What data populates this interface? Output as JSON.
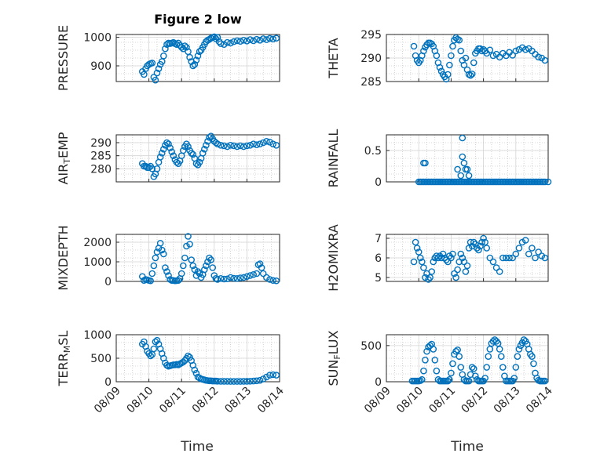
{
  "title": "Figure 2 low",
  "x_axis": {
    "label": "Time",
    "ticks": [
      {
        "day": 9,
        "label": "08/09"
      },
      {
        "day": 10,
        "label": "08/10"
      },
      {
        "day": 11,
        "label": "08/11"
      },
      {
        "day": 12,
        "label": "08/12"
      },
      {
        "day": 13,
        "label": "08/13"
      },
      {
        "day": 14,
        "label": "08/14"
      }
    ]
  },
  "colors": {
    "marker": "#0072BD",
    "axis": "#262626"
  },
  "chart_data": [
    {
      "type": "scatter",
      "ylabel": "PRESSURE",
      "ylim": [
        845,
        1010
      ],
      "yticks": [
        900,
        1000
      ],
      "x": [
        9.8,
        9.85,
        9.9,
        9.95,
        10.0,
        10.05,
        10.1,
        10.15,
        10.2,
        10.25,
        10.3,
        10.35,
        10.4,
        10.45,
        10.5,
        10.55,
        10.6,
        10.65,
        10.7,
        10.75,
        10.8,
        10.85,
        10.9,
        10.95,
        11.0,
        11.05,
        11.1,
        11.15,
        11.2,
        11.25,
        11.3,
        11.35,
        11.4,
        11.45,
        11.5,
        11.55,
        11.6,
        11.65,
        11.7,
        11.75,
        11.8,
        11.85,
        11.9,
        11.95,
        12.0,
        12.05,
        12.1,
        12.15,
        12.2,
        12.3,
        12.4,
        12.5,
        12.6,
        12.7,
        12.8,
        12.9,
        13.0,
        13.1,
        13.2,
        13.3,
        13.4,
        13.5,
        13.6,
        13.7,
        13.8,
        13.9
      ],
      "y": [
        880,
        870,
        890,
        900,
        905,
        908,
        910,
        860,
        850,
        875,
        890,
        905,
        915,
        935,
        960,
        975,
        980,
        978,
        980,
        982,
        978,
        975,
        980,
        972,
        965,
        960,
        970,
        965,
        950,
        930,
        915,
        900,
        905,
        920,
        935,
        950,
        955,
        965,
        975,
        985,
        990,
        993,
        997,
        1000,
        1002,
        995,
        1000,
        985,
        978,
        975,
        982,
        980,
        985,
        988,
        986,
        990,
        987,
        992,
        988,
        993,
        990,
        995,
        992,
        996,
        994,
        997
      ]
    },
    {
      "type": "scatter",
      "ylabel": "THETA",
      "ylim": [
        285,
        295
      ],
      "yticks": [
        285,
        290,
        295
      ],
      "x": [
        9.85,
        9.9,
        9.95,
        10.0,
        10.05,
        10.1,
        10.15,
        10.2,
        10.25,
        10.3,
        10.35,
        10.4,
        10.45,
        10.5,
        10.55,
        10.6,
        10.65,
        10.7,
        10.75,
        10.8,
        10.85,
        10.9,
        10.95,
        11.0,
        11.05,
        11.1,
        11.15,
        11.2,
        11.25,
        11.3,
        11.35,
        11.4,
        11.45,
        11.5,
        11.55,
        11.6,
        11.65,
        11.7,
        11.75,
        11.8,
        11.85,
        11.9,
        11.95,
        12.0,
        12.05,
        12.1,
        12.2,
        12.3,
        12.4,
        12.5,
        12.6,
        12.7,
        12.8,
        12.9,
        13.0,
        13.1,
        13.2,
        13.3,
        13.4,
        13.5,
        13.6,
        13.7,
        13.8,
        13.9
      ],
      "y": [
        292.5,
        290.5,
        289.5,
        289.0,
        289.5,
        290.5,
        291.5,
        292.3,
        292.8,
        293.2,
        293.2,
        293.0,
        292.5,
        291.5,
        290.5,
        289.0,
        288.0,
        287.2,
        286.5,
        286.0,
        285.5,
        286.5,
        288.5,
        290.5,
        292.5,
        293.8,
        294.3,
        294.0,
        293.8,
        291.5,
        289.5,
        288.5,
        290.0,
        287.5,
        286.5,
        286.3,
        286.6,
        289.0,
        291.0,
        291.5,
        292.0,
        292.0,
        291.5,
        291.8,
        291.5,
        291.0,
        291.7,
        290.5,
        290.8,
        290.2,
        291.0,
        290.5,
        291.2,
        290.6,
        291.5,
        291.8,
        292.2,
        291.8,
        292.0,
        291.5,
        290.8,
        290.2,
        290.0,
        289.5
      ]
    },
    {
      "type": "scatter",
      "ylabel": "AIR_TEMP",
      "ylim": [
        275,
        293
      ],
      "yticks": [
        280,
        285,
        290
      ],
      "x": [
        9.8,
        9.85,
        9.9,
        9.95,
        10.0,
        10.05,
        10.1,
        10.15,
        10.2,
        10.25,
        10.3,
        10.35,
        10.4,
        10.45,
        10.5,
        10.55,
        10.6,
        10.65,
        10.7,
        10.75,
        10.8,
        10.85,
        10.9,
        10.95,
        11.0,
        11.05,
        11.1,
        11.15,
        11.2,
        11.25,
        11.3,
        11.35,
        11.4,
        11.45,
        11.5,
        11.55,
        11.6,
        11.65,
        11.7,
        11.75,
        11.8,
        11.85,
        11.9,
        11.95,
        12.0,
        12.05,
        12.1,
        12.2,
        12.3,
        12.4,
        12.5,
        12.6,
        12.7,
        12.8,
        12.9,
        13.0,
        13.1,
        13.2,
        13.3,
        13.4,
        13.5,
        13.6,
        13.7,
        13.8,
        13.9
      ],
      "y": [
        282,
        281,
        281,
        280.5,
        280.5,
        281,
        280,
        277,
        278,
        280,
        282.5,
        284.5,
        286,
        287.5,
        289,
        290,
        289.5,
        288,
        286.5,
        285,
        283.5,
        282.5,
        282,
        283,
        285,
        287,
        288.5,
        289.5,
        288.5,
        287,
        286,
        285.5,
        284,
        282,
        281.5,
        282.5,
        284,
        286,
        287.5,
        289,
        290.5,
        292,
        292.5,
        291.5,
        290.5,
        290,
        289.5,
        289,
        288.8,
        288.5,
        289,
        288.8,
        288.5,
        288.8,
        288.5,
        288.8,
        289,
        289.5,
        289.2,
        289.5,
        290,
        290.5,
        290.2,
        289.5,
        289
      ]
    },
    {
      "type": "scatter",
      "ylabel": "RAINFALL",
      "ylim": [
        0,
        0.75
      ],
      "yticks": [
        0,
        0.5
      ],
      "x": [
        10.0,
        10.05,
        10.1,
        10.15,
        10.2,
        10.25,
        10.3,
        10.35,
        10.4,
        10.45,
        10.5,
        10.55,
        10.6,
        10.65,
        10.7,
        10.75,
        10.8,
        10.85,
        10.9,
        10.95,
        11.0,
        11.05,
        11.1,
        11.15,
        11.2,
        11.25,
        11.3,
        11.35,
        11.4,
        11.45,
        11.5,
        11.55,
        11.6,
        11.65,
        11.7,
        11.75,
        11.8,
        11.85,
        11.9,
        11.95,
        12.0,
        12.05,
        12.1,
        12.15,
        12.2,
        12.25,
        12.3,
        12.35,
        12.4,
        12.45,
        12.5,
        12.55,
        12.6,
        12.65,
        12.7,
        12.75,
        12.8,
        12.85,
        12.9,
        12.95,
        13.0,
        13.05,
        13.1,
        13.15,
        13.2,
        13.25,
        13.3,
        13.35,
        13.4,
        13.45,
        13.5,
        13.55,
        13.6,
        13.65,
        13.7,
        13.75,
        13.8,
        13.85,
        13.9,
        14.0,
        10.15,
        10.2,
        11.2,
        11.3,
        11.35,
        11.35,
        11.4,
        11.45,
        11.5,
        11.55
      ],
      "y": [
        0,
        0,
        0,
        0,
        0,
        0,
        0,
        0,
        0,
        0,
        0,
        0,
        0,
        0,
        0,
        0,
        0,
        0,
        0,
        0,
        0,
        0,
        0,
        0,
        0,
        0,
        0,
        0,
        0,
        0,
        0,
        0,
        0,
        0,
        0,
        0,
        0,
        0,
        0,
        0,
        0,
        0,
        0,
        0,
        0,
        0,
        0,
        0,
        0,
        0,
        0,
        0,
        0,
        0,
        0,
        0,
        0,
        0,
        0,
        0,
        0,
        0,
        0,
        0,
        0,
        0,
        0,
        0,
        0,
        0,
        0,
        0,
        0,
        0,
        0,
        0,
        0,
        0,
        0,
        0,
        0.3,
        0.3,
        0.2,
        0.1,
        0.7,
        0.4,
        0.3,
        0.2,
        0.2,
        0.1
      ]
    },
    {
      "type": "scatter",
      "ylabel": "MIXDEPTH",
      "ylim": [
        0,
        2400
      ],
      "yticks": [
        0,
        1000,
        2000
      ],
      "x": [
        9.8,
        9.85,
        9.9,
        9.95,
        10.0,
        10.05,
        10.1,
        10.15,
        10.2,
        10.25,
        10.3,
        10.35,
        10.4,
        10.45,
        10.5,
        10.55,
        10.6,
        10.65,
        10.7,
        10.75,
        10.8,
        10.85,
        10.9,
        10.95,
        11.0,
        11.05,
        11.1,
        11.15,
        11.2,
        11.25,
        11.3,
        11.35,
        11.4,
        11.45,
        11.5,
        11.55,
        11.6,
        11.65,
        11.7,
        11.75,
        11.8,
        11.85,
        11.9,
        11.95,
        12.0,
        12.05,
        12.1,
        12.2,
        12.3,
        12.4,
        12.5,
        12.6,
        12.7,
        12.8,
        12.9,
        13.0,
        13.1,
        13.2,
        13.3,
        13.35,
        13.4,
        13.45,
        13.5,
        13.6,
        13.7,
        13.8,
        13.9
      ],
      "y": [
        250,
        50,
        100,
        80,
        50,
        30,
        400,
        800,
        1200,
        1500,
        1700,
        1950,
        1600,
        1400,
        700,
        500,
        300,
        100,
        50,
        50,
        30,
        40,
        50,
        150,
        400,
        800,
        1200,
        1800,
        2300,
        1900,
        1100,
        800,
        600,
        300,
        500,
        400,
        200,
        350,
        600,
        800,
        1000,
        1200,
        1100,
        700,
        300,
        150,
        100,
        150,
        120,
        130,
        200,
        160,
        150,
        180,
        200,
        250,
        300,
        350,
        400,
        850,
        900,
        700,
        400,
        200,
        100,
        50,
        30
      ]
    },
    {
      "type": "scatter",
      "ylabel": "H2OMIXRA",
      "ylim": [
        4.8,
        7.2
      ],
      "yticks": [
        5,
        6,
        7
      ],
      "x": [
        9.85,
        9.9,
        9.95,
        10.0,
        10.05,
        10.1,
        10.15,
        10.2,
        10.25,
        10.3,
        10.35,
        10.4,
        10.45,
        10.5,
        10.55,
        10.6,
        10.65,
        10.7,
        10.75,
        10.8,
        10.85,
        10.9,
        10.95,
        11.0,
        11.05,
        11.1,
        11.15,
        11.2,
        11.25,
        11.3,
        11.35,
        11.4,
        11.45,
        11.5,
        11.55,
        11.6,
        11.65,
        11.7,
        11.75,
        11.8,
        11.85,
        11.9,
        11.95,
        12.0,
        12.05,
        12.1,
        12.2,
        12.3,
        12.4,
        12.5,
        12.6,
        12.7,
        12.8,
        12.9,
        13.0,
        13.1,
        13.2,
        13.3,
        13.4,
        13.5,
        13.6,
        13.7,
        13.8,
        13.9
      ],
      "y": [
        5.8,
        6.8,
        6.5,
        6.3,
        6.0,
        5.8,
        5.5,
        5.0,
        5.2,
        4.9,
        5.0,
        5.3,
        5.8,
        6.0,
        6.1,
        6.0,
        6.1,
        6.0,
        6.2,
        6.0,
        5.9,
        5.8,
        6.1,
        6.0,
        6.2,
        5.2,
        5.0,
        5.4,
        5.8,
        6.2,
        6.0,
        5.8,
        5.3,
        5.6,
        6.5,
        6.8,
        6.6,
        6.8,
        6.7,
        6.5,
        6.4,
        6.6,
        6.8,
        7.0,
        6.8,
        6.5,
        6.0,
        5.8,
        5.5,
        5.3,
        6.0,
        6.0,
        6.0,
        6.0,
        6.2,
        6.5,
        6.8,
        6.9,
        6.2,
        6.5,
        6.0,
        6.3,
        6.1,
        6.0
      ]
    },
    {
      "type": "scatter",
      "ylabel": "TERR_MSL",
      "ylim": [
        0,
        1000
      ],
      "yticks": [
        0,
        500,
        1000
      ],
      "x": [
        9.8,
        9.85,
        9.9,
        9.95,
        10.0,
        10.05,
        10.1,
        10.15,
        10.2,
        10.25,
        10.3,
        10.35,
        10.4,
        10.45,
        10.5,
        10.55,
        10.6,
        10.65,
        10.7,
        10.75,
        10.8,
        10.85,
        10.9,
        10.95,
        11.0,
        11.05,
        11.1,
        11.15,
        11.2,
        11.25,
        11.3,
        11.35,
        11.4,
        11.45,
        11.5,
        11.55,
        11.6,
        11.65,
        11.7,
        11.75,
        11.8,
        11.85,
        11.9,
        11.95,
        12.0,
        12.05,
        12.1,
        12.2,
        12.3,
        12.4,
        12.5,
        12.6,
        12.7,
        12.8,
        12.9,
        13.0,
        13.1,
        13.2,
        13.3,
        13.4,
        13.5,
        13.6,
        13.7,
        13.8,
        13.9
      ],
      "y": [
        800,
        850,
        750,
        650,
        600,
        550,
        580,
        700,
        850,
        880,
        800,
        700,
        600,
        500,
        400,
        350,
        330,
        340,
        350,
        360,
        360,
        370,
        360,
        380,
        400,
        420,
        450,
        500,
        550,
        520,
        450,
        350,
        250,
        180,
        100,
        80,
        60,
        50,
        40,
        30,
        25,
        20,
        20,
        15,
        15,
        15,
        12,
        10,
        10,
        10,
        8,
        8,
        8,
        8,
        10,
        10,
        12,
        15,
        20,
        30,
        60,
        100,
        140,
        150,
        140
      ]
    },
    {
      "type": "scatter",
      "ylabel": "SUN_FLUX",
      "ylim": [
        0,
        650
      ],
      "yticks": [
        0,
        500
      ],
      "x": [
        9.8,
        9.85,
        9.9,
        9.95,
        10.0,
        10.05,
        10.1,
        10.15,
        10.2,
        10.25,
        10.3,
        10.35,
        10.4,
        10.45,
        10.5,
        10.55,
        10.6,
        10.65,
        10.7,
        10.75,
        10.8,
        10.85,
        10.9,
        10.95,
        11.0,
        11.05,
        11.1,
        11.15,
        11.2,
        11.25,
        11.3,
        11.35,
        11.4,
        11.45,
        11.5,
        11.55,
        11.6,
        11.65,
        11.7,
        11.75,
        11.8,
        11.85,
        11.9,
        11.95,
        12.0,
        12.05,
        12.1,
        12.15,
        12.2,
        12.25,
        12.3,
        12.35,
        12.4,
        12.45,
        12.5,
        12.55,
        12.6,
        12.65,
        12.7,
        12.75,
        12.8,
        12.85,
        12.9,
        12.95,
        13.0,
        13.05,
        13.1,
        13.15,
        13.2,
        13.25,
        13.3,
        13.35,
        13.4,
        13.45,
        13.5,
        13.55,
        13.6,
        13.65,
        13.7,
        13.75,
        13.8,
        13.85,
        13.9
      ],
      "y": [
        10,
        10,
        10,
        10,
        10,
        15,
        30,
        150,
        300,
        420,
        480,
        500,
        520,
        450,
        300,
        150,
        30,
        10,
        10,
        10,
        10,
        10,
        10,
        30,
        120,
        250,
        380,
        420,
        440,
        350,
        200,
        100,
        30,
        10,
        10,
        10,
        100,
        200,
        180,
        80,
        30,
        10,
        10,
        10,
        10,
        50,
        200,
        350,
        450,
        530,
        560,
        580,
        560,
        530,
        450,
        350,
        200,
        80,
        10,
        10,
        10,
        10,
        10,
        50,
        200,
        350,
        450,
        500,
        540,
        580,
        560,
        520,
        450,
        380,
        350,
        250,
        120,
        50,
        20,
        10,
        10,
        10,
        10
      ]
    }
  ]
}
